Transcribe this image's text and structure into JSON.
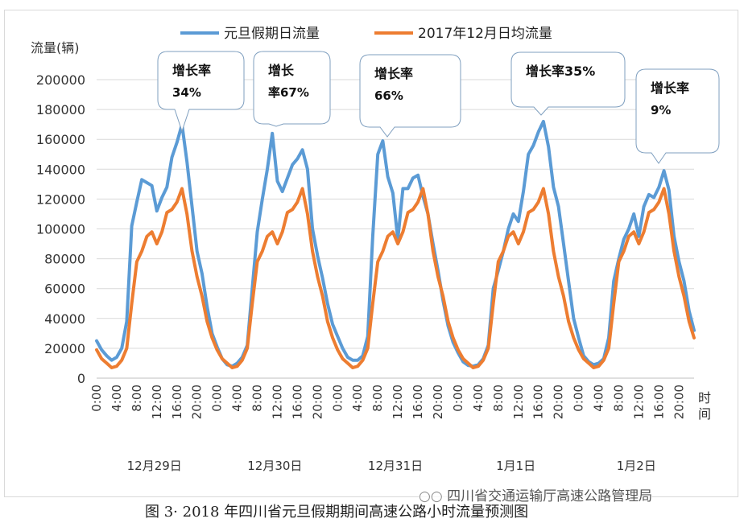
{
  "chart_data": {
    "type": "line",
    "ylabel": "流量(辆)",
    "xlabel": "时间",
    "ylim": [
      0,
      200000
    ],
    "yticks": [
      "0",
      "20000",
      "40000",
      "60000",
      "80000",
      "100000",
      "120000",
      "140000",
      "160000",
      "180000",
      "200000"
    ],
    "grid": "horizontal",
    "legend_position": "top",
    "day_ticks": [
      "0:00",
      "4:00",
      "8:00",
      "12:00",
      "16:00",
      "20:00"
    ],
    "days": [
      "12月29日",
      "12月30日",
      "12月31日",
      "1月1日",
      "1月2日"
    ],
    "callouts": [
      {
        "label": "增长率",
        "value": "34%"
      },
      {
        "label": "增长",
        "value": "率67%"
      },
      {
        "label": "增长率",
        "value": "66%"
      },
      {
        "label": "增长率35%",
        "value": ""
      },
      {
        "label": "增长率",
        "value": "9%"
      }
    ],
    "series": [
      {
        "name": "元旦假期日流量",
        "color": "#5B9BD5",
        "days": [
          [
            25000,
            19000,
            15000,
            12000,
            14000,
            20000,
            38000,
            102000,
            118000,
            133000,
            131000,
            129000,
            112000,
            121000,
            128000,
            148000,
            158000,
            170000,
            145000,
            115000,
            85000,
            70000,
            48000,
            30000
          ],
          [
            21000,
            13000,
            9000,
            8000,
            10000,
            14000,
            22000,
            60000,
            98000,
            120000,
            140000,
            164000,
            132000,
            125000,
            134000,
            143000,
            147000,
            153000,
            140000,
            100000,
            82000,
            67000,
            50000,
            36000
          ],
          [
            28000,
            20000,
            14000,
            12000,
            12000,
            15000,
            28000,
            95000,
            150000,
            159000,
            135000,
            124000,
            93000,
            127000,
            127000,
            134000,
            136000,
            122000,
            110000,
            90000,
            72000,
            52000,
            35000,
            24000
          ],
          [
            17000,
            11000,
            8500,
            8000,
            9000,
            13000,
            22000,
            60000,
            72000,
            85000,
            100000,
            110000,
            105000,
            125000,
            150000,
            156000,
            165000,
            172000,
            155000,
            128000,
            115000,
            90000,
            65000,
            40000
          ],
          [
            27000,
            15000,
            11000,
            9000,
            10000,
            13000,
            27000,
            65000,
            80000,
            93000,
            100000,
            110000,
            95000,
            115000,
            123000,
            121000,
            128000,
            139000,
            126000,
            95000,
            78000,
            65000,
            45000,
            32000
          ]
        ]
      },
      {
        "name": "2017年12月日均流量",
        "color": "#ED7D31",
        "days": [
          [
            19000,
            13000,
            10000,
            7000,
            8000,
            12000,
            20000,
            50000,
            78000,
            85000,
            95000,
            98000,
            90000,
            98000,
            111000,
            113000,
            118000,
            127000,
            110000,
            85000,
            68000,
            55000,
            38000,
            27000
          ],
          [
            19000,
            13000,
            10000,
            7000,
            8000,
            12000,
            20000,
            50000,
            78000,
            85000,
            95000,
            98000,
            90000,
            98000,
            111000,
            113000,
            118000,
            127000,
            110000,
            85000,
            68000,
            55000,
            38000,
            27000
          ],
          [
            19000,
            13000,
            10000,
            7000,
            8000,
            12000,
            20000,
            50000,
            78000,
            85000,
            95000,
            98000,
            90000,
            98000,
            111000,
            113000,
            118000,
            127000,
            110000,
            85000,
            68000,
            55000,
            38000,
            27000
          ],
          [
            19000,
            13000,
            10000,
            7000,
            8000,
            12000,
            20000,
            50000,
            78000,
            85000,
            95000,
            98000,
            90000,
            98000,
            111000,
            113000,
            118000,
            127000,
            110000,
            85000,
            68000,
            55000,
            38000,
            27000
          ],
          [
            19000,
            13000,
            10000,
            7000,
            8000,
            12000,
            20000,
            50000,
            78000,
            85000,
            95000,
            98000,
            90000,
            98000,
            111000,
            113000,
            118000,
            127000,
            110000,
            85000,
            68000,
            55000,
            38000,
            27000
          ]
        ]
      }
    ]
  },
  "caption": "图 3· 2018 年四川省元旦假期期间高速公路小时流量预测图",
  "watermark": "四川省交通运输厅高速公路管理局"
}
